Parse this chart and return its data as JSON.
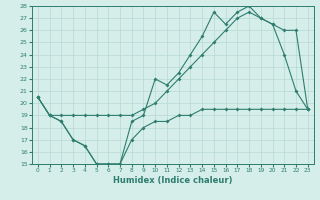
{
  "xlabel": "Humidex (Indice chaleur)",
  "bg_color": "#d5eeea",
  "line_color": "#2e7d6e",
  "grid_color": "#b8d8d4",
  "xlim": [
    -0.5,
    23.5
  ],
  "ylim": [
    15,
    28
  ],
  "yticks": [
    15,
    16,
    17,
    18,
    19,
    20,
    21,
    22,
    23,
    24,
    25,
    26,
    27,
    28
  ],
  "xticks": [
    0,
    1,
    2,
    3,
    4,
    5,
    6,
    7,
    8,
    9,
    10,
    11,
    12,
    13,
    14,
    15,
    16,
    17,
    18,
    19,
    20,
    21,
    22,
    23
  ],
  "line1_x": [
    0,
    1,
    2,
    3,
    4,
    5,
    6,
    7,
    8,
    9,
    10,
    11,
    12,
    13,
    14,
    15,
    16,
    17,
    18,
    19,
    20,
    21,
    22,
    23
  ],
  "line1_y": [
    20.5,
    19.0,
    19.0,
    19.0,
    19.0,
    19.0,
    19.0,
    19.0,
    19.0,
    19.5,
    20.0,
    21.0,
    22.0,
    23.0,
    24.0,
    25.0,
    26.0,
    27.0,
    27.5,
    27.0,
    26.5,
    26.0,
    26.0,
    19.5
  ],
  "line2_x": [
    0,
    1,
    2,
    3,
    4,
    5,
    6,
    7,
    8,
    9,
    10,
    11,
    12,
    13,
    14,
    15,
    16,
    17,
    18,
    19,
    20,
    21,
    22,
    23
  ],
  "line2_y": [
    20.5,
    19.0,
    18.5,
    17.0,
    16.5,
    15.0,
    15.0,
    15.0,
    18.5,
    19.0,
    22.0,
    21.5,
    22.5,
    24.0,
    25.5,
    27.5,
    26.5,
    27.5,
    28.0,
    27.0,
    26.5,
    24.0,
    21.0,
    19.5
  ],
  "line3_x": [
    0,
    1,
    2,
    3,
    4,
    5,
    6,
    7,
    8,
    9,
    10,
    11,
    12,
    13,
    14,
    15,
    16,
    17,
    18,
    19,
    20,
    21,
    22,
    23
  ],
  "line3_y": [
    20.5,
    19.0,
    18.5,
    17.0,
    16.5,
    15.0,
    15.0,
    15.0,
    17.0,
    18.0,
    18.5,
    18.5,
    19.0,
    19.0,
    19.5,
    19.5,
    19.5,
    19.5,
    19.5,
    19.5,
    19.5,
    19.5,
    19.5,
    19.5
  ]
}
